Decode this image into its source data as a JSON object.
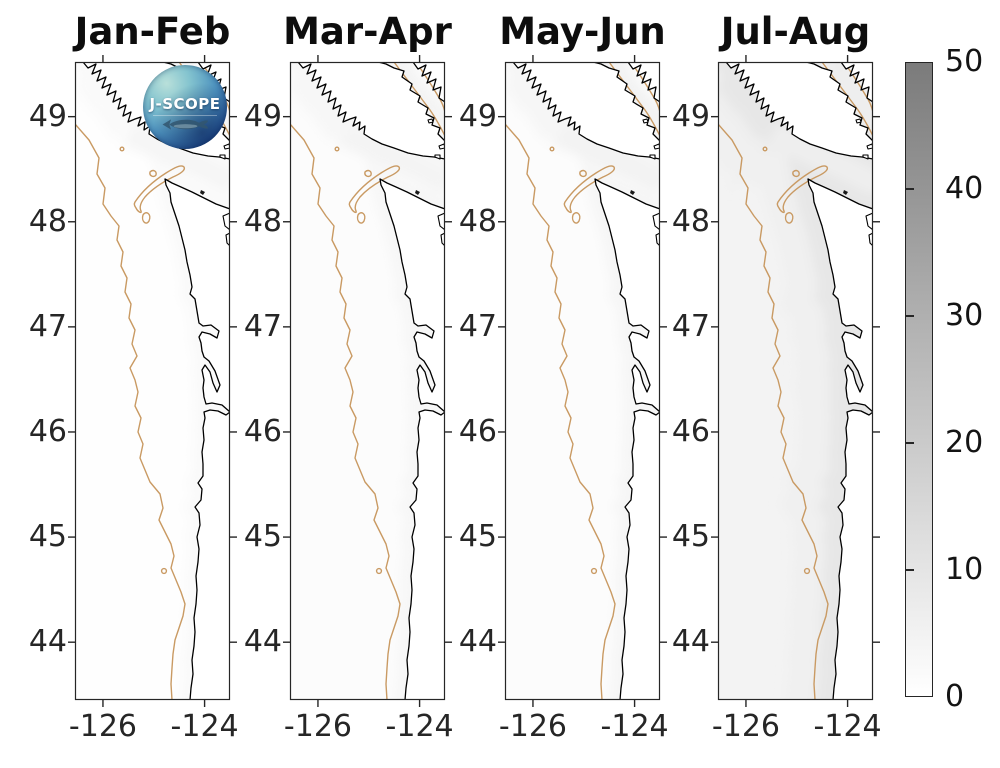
{
  "figure": {
    "background": "#ffffff"
  },
  "logo": {
    "text": "J-SCOPE"
  },
  "colors": {
    "coastline": "#000000",
    "bathymetry_contour": "#c99a63",
    "axis": "#262626",
    "colorbar_top": "#7b7b7b",
    "colorbar_bottom": "#ffffff"
  },
  "chart_data": {
    "type": "heatmap",
    "description": "Four bimonthly map panels of a gridded coastal-ocean field (grayscale, 0-50) over the Pacific Northwest shelf (Vancouver Island, Washington, Oregon), each with black coastline and a tan shelf-break bathymetry contour; J-SCOPE logo overlaid on the first panel.",
    "panels": [
      {
        "title": "Jan-Feb",
        "shading_value_estimates": {
          "offshore": 0.5,
          "nearshore": 2,
          "inland_straits": 3.5
        }
      },
      {
        "title": "Mar-Apr",
        "shading_value_estimates": {
          "offshore": 1,
          "nearshore": 3,
          "inland_straits": 4
        }
      },
      {
        "title": "May-Jun",
        "shading_value_estimates": {
          "offshore": 1,
          "nearshore": 3.5,
          "inland_straits": 4.5
        }
      },
      {
        "title": "Jul-Aug",
        "shading_value_estimates": {
          "offshore": 4.5,
          "nearshore": 9,
          "inland_straits": 6.5
        }
      }
    ],
    "x_axis": {
      "ticks": [
        -126,
        -124
      ],
      "range_estimate": [
        -126.55,
        -123.5
      ]
    },
    "y_axis": {
      "ticks": [
        49,
        48,
        47,
        46,
        45,
        44
      ],
      "range_estimate": [
        43.45,
        49.52
      ]
    },
    "colorbar": {
      "vmin": 0,
      "vmax": 50,
      "ticks": [
        50,
        40,
        30,
        20,
        10,
        0
      ],
      "colormap": "linear gray: 0=white, 50=mid-gray"
    },
    "map_features": {
      "coastline": "Vancouver Island, Strait of Juan de Fuca, Washington and Oregon coast",
      "contour": "tan shelf-break isobath with Juan de Fuca canyon hook and Strait of Georgia segments"
    }
  }
}
